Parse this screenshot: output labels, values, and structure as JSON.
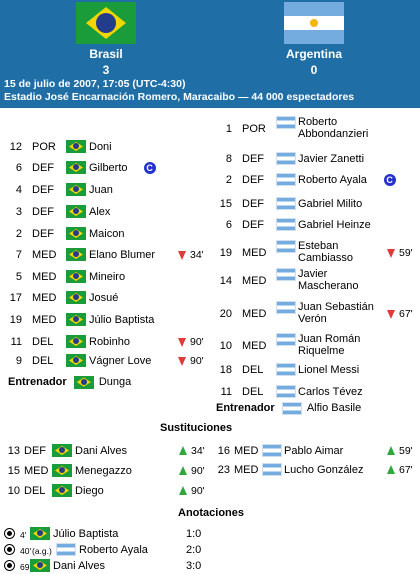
{
  "match": {
    "home": {
      "name": "Brasil",
      "score": "3"
    },
    "away": {
      "name": "Argentina",
      "score": "0"
    },
    "datetime": "15 de julio de 2007, 17:05 (UTC-4:30)",
    "venue": "Estadio José Encarnación Romero, Maracaibo — 44 000 espectadores"
  },
  "home_lineup": [
    {
      "num": "12",
      "pos": "POR",
      "name": "Doni"
    },
    {
      "num": "6",
      "pos": "DEF",
      "name": "Gilberto",
      "captain": "C"
    },
    {
      "num": "4",
      "pos": "DEF",
      "name": "Juan"
    },
    {
      "num": "3",
      "pos": "DEF",
      "name": "Alex"
    },
    {
      "num": "2",
      "pos": "DEF",
      "name": "Maicon"
    },
    {
      "num": "7",
      "pos": "MED",
      "name": "Elano Blumer",
      "sub_out": "34'"
    },
    {
      "num": "5",
      "pos": "MED",
      "name": "Mineiro"
    },
    {
      "num": "17",
      "pos": "MED",
      "name": "Josué"
    },
    {
      "num": "19",
      "pos": "MED",
      "name": "Júlio Baptista"
    },
    {
      "num": "11",
      "pos": "DEL",
      "name": "Robinho",
      "sub_out": "90'"
    },
    {
      "num": "9",
      "pos": "DEL",
      "name": "Vágner Love",
      "sub_out": "90'"
    }
  ],
  "home_coach": {
    "label": "Entrenador",
    "name": "Dunga"
  },
  "away_lineup": [
    {
      "num": "1",
      "pos": "POR",
      "name": "Roberto Abbondanzieri"
    },
    {
      "num": "8",
      "pos": "DEF",
      "name": "Javier Zanetti"
    },
    {
      "num": "2",
      "pos": "DEF",
      "name": "Roberto Ayala",
      "captain": "C"
    },
    {
      "num": "15",
      "pos": "DEF",
      "name": "Gabriel Milito"
    },
    {
      "num": "6",
      "pos": "DEF",
      "name": "Gabriel Heinze"
    },
    {
      "num": "19",
      "pos": "MED",
      "name": "Esteban Cambiasso",
      "sub_out": "59'"
    },
    {
      "num": "14",
      "pos": "MED",
      "name": "Javier Mascherano"
    },
    {
      "num": "20",
      "pos": "MED",
      "name": "Juan Sebastián Verón",
      "sub_out": "67'"
    },
    {
      "num": "10",
      "pos": "MED",
      "name": "Juan Román Riquelme"
    },
    {
      "num": "18",
      "pos": "DEL",
      "name": "Lionel Messi"
    },
    {
      "num": "11",
      "pos": "DEL",
      "name": "Carlos Tévez"
    }
  ],
  "away_coach": {
    "label": "Entrenador",
    "name": "Alfio Basile"
  },
  "subs_title": "Sustituciones",
  "home_subs": [
    {
      "num": "13",
      "pos": "DEF",
      "name": "Dani Alves",
      "min": "34'"
    },
    {
      "num": "15",
      "pos": "MED",
      "name": "Menegazzo",
      "min": "90'"
    },
    {
      "num": "10",
      "pos": "DEL",
      "name": "Diego",
      "min": "90'"
    }
  ],
  "away_subs": [
    {
      "num": "16",
      "pos": "MED",
      "name": "Pablo Aimar",
      "min": "59'"
    },
    {
      "num": "23",
      "pos": "MED",
      "name": "Lucho González",
      "min": "67'"
    }
  ],
  "goals_title": "Anotaciones",
  "goals": [
    {
      "min": "4'",
      "note": "",
      "player": "Júlio Baptista",
      "team": "br",
      "score": "1:0"
    },
    {
      "min": "40'",
      "note": "(a.g.)",
      "player": "Roberto Ayala",
      "team": "ar",
      "score": "2:0"
    },
    {
      "min": "69'",
      "note": "",
      "player": "Dani Alves",
      "team": "br",
      "score": "3:0"
    }
  ],
  "colors": {
    "header": "#1f6fa6",
    "sub_out": "#e23a3a",
    "sub_in": "#2ea83a",
    "captain": "#2431d0"
  }
}
